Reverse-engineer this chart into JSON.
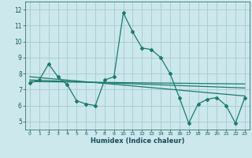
{
  "title": "",
  "xlabel": "Humidex (Indice chaleur)",
  "bg_color": "#cce8ec",
  "line_color": "#1a7a6e",
  "grid_color": "#aacdd4",
  "xlim": [
    -0.5,
    23.5
  ],
  "ylim": [
    4.5,
    12.5
  ],
  "xticks": [
    0,
    1,
    2,
    3,
    4,
    5,
    6,
    7,
    8,
    9,
    10,
    11,
    12,
    13,
    14,
    15,
    16,
    17,
    18,
    19,
    20,
    21,
    22,
    23
  ],
  "yticks": [
    5,
    6,
    7,
    8,
    9,
    10,
    11,
    12
  ],
  "line1_x": [
    0,
    1,
    2,
    3,
    4,
    5,
    6,
    7,
    8,
    9,
    10,
    11,
    12,
    13,
    14,
    15,
    16,
    17,
    18,
    19,
    20,
    21,
    22,
    23
  ],
  "line1_y": [
    7.4,
    7.6,
    8.6,
    7.8,
    7.3,
    6.3,
    6.1,
    6.0,
    7.6,
    7.8,
    11.8,
    10.6,
    9.6,
    9.5,
    9.0,
    8.0,
    6.5,
    4.9,
    6.1,
    6.4,
    6.5,
    6.0,
    4.9,
    6.5
  ],
  "line2_x": [
    0,
    23
  ],
  "line2_y": [
    7.8,
    6.6
  ],
  "line3_x": [
    0,
    23
  ],
  "line3_y": [
    7.6,
    7.1
  ],
  "line4_x": [
    0,
    23
  ],
  "line4_y": [
    7.5,
    7.35
  ]
}
